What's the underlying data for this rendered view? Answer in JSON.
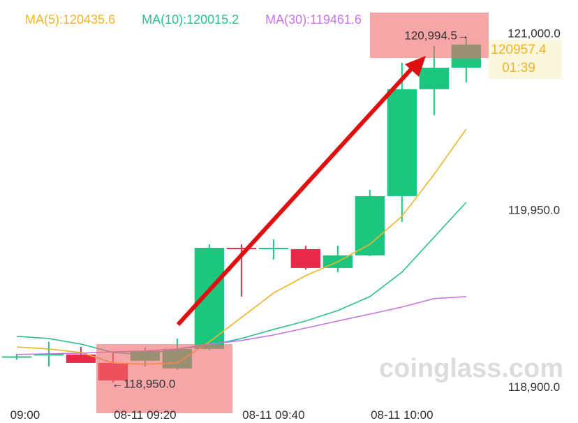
{
  "chart_data": {
    "type": "candlestick",
    "x": [
      0,
      5,
      10,
      15,
      20,
      25,
      30,
      35,
      40,
      45,
      50,
      55,
      60,
      65,
      70
    ],
    "open": [
      119100,
      119110,
      119116,
      119066,
      119079,
      119033,
      119149,
      119750,
      119742,
      119742,
      119630,
      119705,
      120057,
      120692,
      120820
    ],
    "high": [
      119120,
      119191,
      119161,
      119128,
      119157,
      119211,
      119771,
      119771,
      119800,
      119763,
      119763,
      120095,
      120849,
      120949,
      120994.5
    ],
    "low": [
      119085,
      119045,
      119066,
      118950,
      119045,
      119025,
      119140,
      119460,
      119680,
      119620,
      119605,
      119700,
      119904,
      120538,
      120733
    ],
    "close": [
      119105,
      119120,
      119066,
      118962,
      119137,
      119149,
      119750,
      119742,
      119750,
      119630,
      119705,
      120057,
      120692,
      120820,
      120957.4
    ],
    "up_color": "#1dc67f",
    "down_color": "#e8294a",
    "series": [
      {
        "name": "MA(5):120435.6",
        "color": "#f0b429",
        "values": [
          119161,
          119149,
          119128,
          119066,
          119058,
          119066,
          119191,
          119336,
          119481,
          119584,
          119667,
          119771,
          119937,
          120186,
          120455
        ]
      },
      {
        "name": "MA(10):120015.2",
        "color": "#2bc08e",
        "values": [
          119224,
          119211,
          119178,
          119128,
          119116,
          119149,
          119170,
          119211,
          119265,
          119315,
          119377,
          119460,
          119605,
          119813,
          120020
        ]
      },
      {
        "name": "MA(30):119461.6",
        "color": "#c773e8",
        "values": [
          119116,
          119120,
          119124,
          119132,
          119137,
          119149,
          119178,
          119199,
          119232,
          119273,
          119315,
          119356,
          119398,
          119448,
          119460
        ]
      }
    ],
    "xlim": [
      -2.6,
      73.5
    ],
    "xticks": [
      {
        "value": 0,
        "label": "09:00"
      },
      {
        "value": 20,
        "label": "08-11 09:20"
      },
      {
        "value": 40,
        "label": "08-11 09:40"
      },
      {
        "value": 60,
        "label": "08-11 10:00"
      }
    ],
    "ylim": [
      118709,
      121222
    ],
    "yticks": [
      {
        "value": 121000,
        "label": "121,000.0"
      },
      {
        "value": 119950,
        "label": "119,950.0"
      },
      {
        "value": 118900,
        "label": "118,900.0"
      }
    ],
    "high_label": "120,994.5→",
    "low_label": "←118,950.0",
    "last_price": "120957.4",
    "countdown": "01:39",
    "watermark": "coinglass.com"
  }
}
